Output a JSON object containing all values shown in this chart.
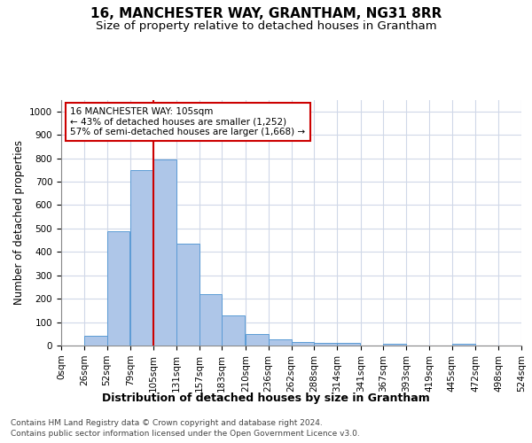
{
  "title": "16, MANCHESTER WAY, GRANTHAM, NG31 8RR",
  "subtitle": "Size of property relative to detached houses in Grantham",
  "xlabel": "Distribution of detached houses by size in Grantham",
  "ylabel": "Number of detached properties",
  "bar_color": "#aec6e8",
  "bar_edge_color": "#5b9bd5",
  "background_color": "#ffffff",
  "grid_color": "#d0d8e8",
  "annotation_text": "16 MANCHESTER WAY: 105sqm\n← 43% of detached houses are smaller (1,252)\n57% of semi-detached houses are larger (1,668) →",
  "annotation_box_color": "#cc0000",
  "vline_x": 105,
  "vline_color": "#cc0000",
  "categories": [
    "0sqm",
    "26sqm",
    "52sqm",
    "79sqm",
    "105sqm",
    "131sqm",
    "157sqm",
    "183sqm",
    "210sqm",
    "236sqm",
    "262sqm",
    "288sqm",
    "314sqm",
    "341sqm",
    "367sqm",
    "393sqm",
    "419sqm",
    "445sqm",
    "472sqm",
    "498sqm",
    "524sqm"
  ],
  "bin_edges": [
    0,
    26,
    52,
    79,
    105,
    131,
    157,
    183,
    210,
    236,
    262,
    288,
    314,
    341,
    367,
    393,
    419,
    445,
    472,
    498,
    524
  ],
  "values": [
    0,
    40,
    490,
    750,
    795,
    437,
    220,
    127,
    50,
    25,
    15,
    10,
    10,
    0,
    8,
    0,
    0,
    8,
    0,
    0,
    0
  ],
  "ylim": [
    0,
    1050
  ],
  "yticks": [
    0,
    100,
    200,
    300,
    400,
    500,
    600,
    700,
    800,
    900,
    1000
  ],
  "footer_line1": "Contains HM Land Registry data © Crown copyright and database right 2024.",
  "footer_line2": "Contains public sector information licensed under the Open Government Licence v3.0.",
  "title_fontsize": 11,
  "subtitle_fontsize": 9.5,
  "xlabel_fontsize": 9,
  "ylabel_fontsize": 8.5,
  "tick_fontsize": 7.5,
  "annotation_fontsize": 7.5,
  "footer_fontsize": 6.5
}
